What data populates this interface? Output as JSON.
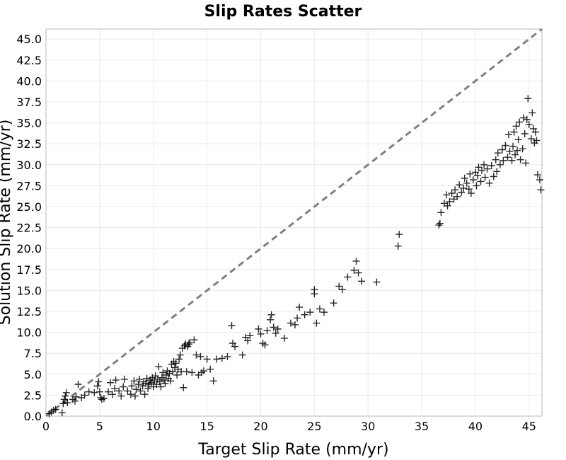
{
  "chart_data": {
    "type": "scatter",
    "title": "Slip Rates Scatter",
    "xlabel": "Target Slip Rate (mm/yr)",
    "ylabel": "Solution Slip Rate (mm/yr)",
    "xlim": [
      0,
      46.2
    ],
    "ylim": [
      0,
      46.2
    ],
    "x_ticks": [
      0,
      5,
      10,
      15,
      20,
      25,
      30,
      35,
      40,
      45
    ],
    "x_tick_labels": [
      "0",
      "5",
      "10",
      "15",
      "20",
      "25",
      "30",
      "35",
      "40",
      "45"
    ],
    "y_ticks": [
      0,
      2.5,
      5,
      7.5,
      10,
      12.5,
      15,
      17.5,
      20,
      22.5,
      25,
      27.5,
      30,
      32.5,
      35,
      37.5,
      40,
      42.5,
      45
    ],
    "y_tick_labels": [
      "0.0",
      "2.5",
      "5.0",
      "7.5",
      "10.0",
      "12.5",
      "15.0",
      "17.5",
      "20.0",
      "22.5",
      "25.0",
      "27.5",
      "30.0",
      "32.5",
      "35.0",
      "37.5",
      "40.0",
      "42.5",
      "45.0"
    ],
    "grid": true,
    "marker": "plus",
    "reference_line": "y = x",
    "colors": {
      "points": "#000000",
      "reference_line": "#808080",
      "grid": "#e9e9e9"
    },
    "series": [
      {
        "points": [
          [
            0.3,
            0.3
          ],
          [
            0.5,
            0.5
          ],
          [
            0.7,
            0.7
          ],
          [
            0.9,
            0.8
          ],
          [
            1.5,
            0.4
          ],
          [
            1.6,
            1.5
          ],
          [
            1.7,
            2.0
          ],
          [
            1.8,
            2.4
          ],
          [
            1.9,
            2.8
          ],
          [
            2.0,
            1.6
          ],
          [
            2.5,
            2.0
          ],
          [
            2.7,
            1.8
          ],
          [
            2.8,
            2.3
          ],
          [
            3.0,
            3.8
          ],
          [
            3.3,
            2.2
          ],
          [
            3.6,
            2.5
          ],
          [
            4.0,
            2.9
          ],
          [
            4.5,
            2.8
          ],
          [
            4.8,
            3.6
          ],
          [
            4.9,
            4.1
          ],
          [
            5.0,
            2.9
          ],
          [
            5.1,
            2.2
          ],
          [
            5.2,
            2.0
          ],
          [
            5.4,
            2.1
          ],
          [
            5.8,
            2.9
          ],
          [
            6.0,
            4.0
          ],
          [
            6.2,
            2.6
          ],
          [
            6.4,
            3.3
          ],
          [
            6.5,
            4.3
          ],
          [
            6.8,
            3.0
          ],
          [
            7.0,
            2.4
          ],
          [
            7.2,
            3.5
          ],
          [
            7.3,
            4.4
          ],
          [
            7.6,
            3.0
          ],
          [
            7.9,
            2.6
          ],
          [
            8.0,
            3.6
          ],
          [
            8.2,
            4.2
          ],
          [
            8.3,
            2.4
          ],
          [
            8.4,
            3.2
          ],
          [
            8.6,
            3.8
          ],
          [
            8.7,
            4.4
          ],
          [
            8.8,
            3.0
          ],
          [
            9.0,
            3.6
          ],
          [
            9.1,
            4.1
          ],
          [
            9.2,
            2.6
          ],
          [
            9.3,
            3.9
          ],
          [
            9.4,
            4.5
          ],
          [
            9.5,
            3.3
          ],
          [
            9.6,
            3.8
          ],
          [
            9.7,
            4.3
          ],
          [
            9.8,
            4.0
          ],
          [
            9.9,
            4.6
          ],
          [
            10.0,
            3.5
          ],
          [
            10.1,
            4.2
          ],
          [
            10.2,
            4.8
          ],
          [
            10.3,
            3.8
          ],
          [
            10.4,
            4.4
          ],
          [
            10.5,
            5.9
          ],
          [
            10.6,
            4.1
          ],
          [
            10.7,
            3.5
          ],
          [
            10.8,
            4.6
          ],
          [
            10.9,
            5.2
          ],
          [
            11.0,
            4.3
          ],
          [
            11.1,
            3.9
          ],
          [
            11.2,
            4.9
          ],
          [
            11.3,
            5.4
          ],
          [
            11.4,
            4.5
          ],
          [
            11.5,
            5.1
          ],
          [
            11.6,
            4.2
          ],
          [
            11.7,
            6.2
          ],
          [
            11.8,
            5.3
          ],
          [
            11.9,
            6.5
          ],
          [
            12.0,
            5.8
          ],
          [
            12.1,
            6.3
          ],
          [
            12.2,
            4.9
          ],
          [
            12.3,
            5.6
          ],
          [
            12.4,
            6.8
          ],
          [
            12.5,
            7.3
          ],
          [
            12.6,
            5.3
          ],
          [
            12.7,
            8.1
          ],
          [
            12.8,
            3.4
          ],
          [
            12.9,
            8.4
          ],
          [
            13.0,
            8.6
          ],
          [
            13.1,
            5.3
          ],
          [
            13.2,
            8.3
          ],
          [
            13.3,
            8.6
          ],
          [
            13.4,
            8.8
          ],
          [
            13.6,
            5.2
          ],
          [
            13.8,
            9.1
          ],
          [
            14.0,
            7.3
          ],
          [
            14.2,
            4.9
          ],
          [
            14.4,
            7.1
          ],
          [
            14.5,
            5.2
          ],
          [
            14.7,
            5.4
          ],
          [
            15.0,
            6.8
          ],
          [
            15.3,
            5.6
          ],
          [
            15.6,
            4.2
          ],
          [
            15.9,
            6.8
          ],
          [
            16.4,
            6.9
          ],
          [
            16.9,
            7.1
          ],
          [
            17.3,
            10.8
          ],
          [
            17.4,
            8.7
          ],
          [
            17.6,
            8.3
          ],
          [
            18.3,
            7.3
          ],
          [
            18.6,
            9.4
          ],
          [
            18.8,
            9.0
          ],
          [
            19.0,
            9.6
          ],
          [
            19.8,
            10.4
          ],
          [
            20.0,
            9.8
          ],
          [
            20.2,
            8.7
          ],
          [
            20.4,
            8.5
          ],
          [
            20.6,
            10.2
          ],
          [
            20.9,
            11.5
          ],
          [
            21.0,
            12.1
          ],
          [
            21.2,
            10.6
          ],
          [
            21.4,
            9.9
          ],
          [
            21.6,
            10.4
          ],
          [
            22.2,
            9.3
          ],
          [
            22.8,
            11.1
          ],
          [
            23.2,
            10.9
          ],
          [
            23.4,
            11.7
          ],
          [
            23.6,
            13.0
          ],
          [
            24.1,
            12.1
          ],
          [
            24.6,
            12.4
          ],
          [
            25.0,
            14.6
          ],
          [
            25.0,
            15.1
          ],
          [
            25.2,
            11.1
          ],
          [
            25.5,
            12.8
          ],
          [
            25.9,
            12.4
          ],
          [
            26.8,
            13.5
          ],
          [
            27.3,
            15.5
          ],
          [
            27.6,
            15.1
          ],
          [
            28.1,
            16.6
          ],
          [
            28.7,
            17.4
          ],
          [
            28.9,
            18.5
          ],
          [
            29.1,
            17.1
          ],
          [
            29.4,
            16.1
          ],
          [
            30.8,
            16.0
          ],
          [
            32.8,
            20.3
          ],
          [
            32.9,
            21.7
          ],
          [
            36.6,
            22.8
          ],
          [
            36.7,
            23.0
          ],
          [
            36.8,
            24.3
          ],
          [
            37.1,
            25.4
          ],
          [
            37.3,
            26.4
          ],
          [
            37.4,
            25.1
          ],
          [
            37.6,
            25.6
          ],
          [
            37.8,
            26.6
          ],
          [
            38.0,
            25.9
          ],
          [
            38.1,
            27.0
          ],
          [
            38.3,
            26.2
          ],
          [
            38.5,
            27.6
          ],
          [
            38.7,
            26.7
          ],
          [
            38.9,
            27.2
          ],
          [
            39.0,
            28.4
          ],
          [
            39.2,
            27.8
          ],
          [
            39.4,
            27.1
          ],
          [
            39.5,
            28.9
          ],
          [
            39.6,
            26.6
          ],
          [
            39.8,
            28.2
          ],
          [
            40.0,
            29.1
          ],
          [
            40.1,
            27.5
          ],
          [
            40.2,
            28.7
          ],
          [
            40.3,
            29.7
          ],
          [
            40.5,
            28.0
          ],
          [
            40.6,
            29.3
          ],
          [
            40.8,
            30.0
          ],
          [
            40.9,
            28.5
          ],
          [
            41.1,
            29.5
          ],
          [
            41.3,
            27.8
          ],
          [
            41.5,
            29.9
          ],
          [
            41.7,
            28.6
          ],
          [
            41.9,
            30.6
          ],
          [
            42.0,
            29.2
          ],
          [
            42.1,
            31.4
          ],
          [
            42.3,
            30.0
          ],
          [
            42.5,
            31.8
          ],
          [
            42.6,
            30.5
          ],
          [
            42.8,
            32.3
          ],
          [
            43.0,
            30.9
          ],
          [
            43.1,
            33.6
          ],
          [
            43.2,
            31.6
          ],
          [
            43.4,
            30.5
          ],
          [
            43.5,
            32.2
          ],
          [
            43.6,
            33.9
          ],
          [
            43.7,
            31.2
          ],
          [
            43.8,
            34.6
          ],
          [
            43.9,
            31.7
          ],
          [
            44.0,
            33.0
          ],
          [
            44.1,
            35.1
          ],
          [
            44.2,
            30.6
          ],
          [
            44.4,
            31.9
          ],
          [
            44.5,
            35.6
          ],
          [
            44.6,
            33.7
          ],
          [
            44.7,
            30.2
          ],
          [
            44.8,
            35.4
          ],
          [
            44.9,
            37.9
          ],
          [
            45.0,
            34.8
          ],
          [
            45.2,
            33.1
          ],
          [
            45.3,
            36.2
          ],
          [
            45.4,
            34.3
          ],
          [
            45.5,
            32.6
          ],
          [
            45.6,
            33.9
          ],
          [
            45.7,
            32.9
          ],
          [
            45.8,
            28.8
          ],
          [
            46.0,
            28.2
          ],
          [
            46.1,
            27.0
          ]
        ]
      }
    ]
  }
}
